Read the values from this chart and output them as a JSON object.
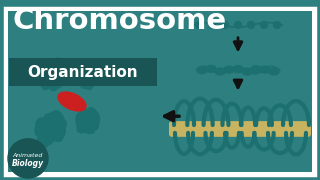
{
  "bg_color": "#2e8080",
  "white": "#ffffff",
  "teal": "#1d7070",
  "dark_teal": "#1a5555",
  "black": "#111111",
  "red": "#cc2020",
  "tan": "#c8b460",
  "title_text": "Chromosome",
  "subtitle_text": "Organization",
  "watermark_line1": "Animated",
  "watermark_line2": "Biology"
}
